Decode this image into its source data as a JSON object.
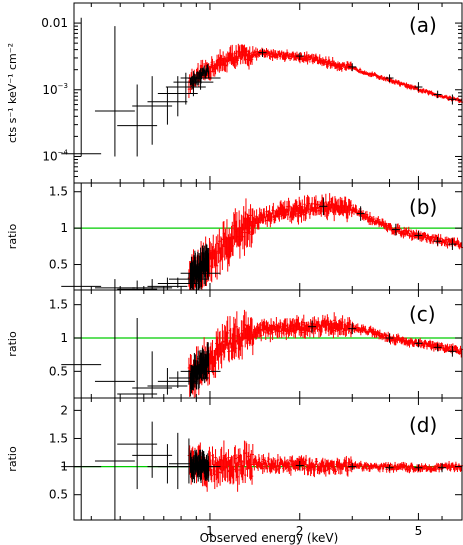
{
  "chart_data": {
    "type": "scatter",
    "x_axis": {
      "label": "Observed energy (keV)",
      "scale": "log",
      "range": [
        0.35,
        7.0
      ],
      "major_ticks": [
        {
          "value": 1,
          "label": "1"
        },
        {
          "value": 2,
          "label": "2"
        },
        {
          "value": 5,
          "label": "5"
        }
      ]
    },
    "series_colors": {
      "black_instrument": "#000000",
      "red_instrument": "#ff0000",
      "reference_line": "#00cc00"
    },
    "panels": [
      {
        "id": "a",
        "label": "(a)",
        "ylabel": "cts s⁻¹ keV⁻¹ cm⁻²",
        "yscale": "log",
        "ylim": [
          4e-05,
          0.02
        ],
        "yticks": [
          {
            "value": 0.01,
            "label": "0.01"
          },
          {
            "value": 0.001,
            "label": "10",
            "exp": "−3"
          },
          {
            "value": 0.0001,
            "label": "10",
            "exp": "−4"
          }
        ],
        "reference_line": null,
        "curve": [
          [
            0.85,
            0.0012
          ],
          [
            1.0,
            0.0021
          ],
          [
            1.2,
            0.0031
          ],
          [
            1.5,
            0.0035
          ],
          [
            1.8,
            0.0033
          ],
          [
            2.2,
            0.0029
          ],
          [
            3.0,
            0.0021
          ],
          [
            4.0,
            0.0014
          ],
          [
            5.0,
            0.001
          ],
          [
            6.0,
            0.0008
          ],
          [
            7.0,
            0.00068
          ]
        ],
        "black_points": [
          [
            0.37,
            0.00011,
            0.0001,
            0.012
          ],
          [
            0.48,
            0.00048,
            0.0001,
            0.009
          ],
          [
            0.57,
            0.00029,
            0.0001,
            0.0012
          ],
          [
            0.64,
            0.00057,
            0.00015,
            0.0016
          ],
          [
            0.72,
            0.00066,
            0.0003,
            0.0011
          ],
          [
            0.78,
            0.00088,
            0.0004,
            0.0016
          ],
          [
            0.83,
            0.0011,
            0.0006,
            0.0018
          ],
          [
            0.88,
            0.0013,
            0.0008,
            0.0019
          ],
          [
            0.93,
            0.0015,
            0.001,
            0.0021
          ],
          [
            1.5,
            0.0036,
            0.0031,
            0.0041
          ],
          [
            2.0,
            0.0032,
            0.0028,
            0.0036
          ],
          [
            3.0,
            0.0022,
            0.0019,
            0.0025
          ],
          [
            4.0,
            0.0015,
            0.0013,
            0.0017
          ],
          [
            5.0,
            0.0011,
            0.00095,
            0.0013
          ],
          [
            5.8,
            0.00085,
            0.00075,
            0.00097
          ],
          [
            6.5,
            0.00072,
            0.0006,
            0.00085
          ]
        ]
      },
      {
        "id": "b",
        "label": "(b)",
        "ylabel": "ratio",
        "yscale": "linear",
        "ylim": [
          0.15,
          1.62
        ],
        "yticks": [
          {
            "value": 0.5,
            "label": "0.5"
          },
          {
            "value": 1,
            "label": "1"
          },
          {
            "value": 1.5,
            "label": "1.5"
          }
        ],
        "reference_line": 1,
        "curve": [
          [
            0.85,
            0.32
          ],
          [
            1.0,
            0.55
          ],
          [
            1.2,
            0.9
          ],
          [
            1.4,
            1.1
          ],
          [
            1.7,
            1.2
          ],
          [
            2.0,
            1.25
          ],
          [
            2.5,
            1.3
          ],
          [
            3.0,
            1.25
          ],
          [
            3.5,
            1.12
          ],
          [
            4.0,
            1.0
          ],
          [
            5.0,
            0.9
          ],
          [
            6.0,
            0.82
          ],
          [
            7.0,
            0.77
          ]
        ],
        "black_points": [
          [
            0.37,
            0.2,
            0.15,
            1.62
          ],
          [
            0.48,
            0.18,
            0.15,
            0.3
          ],
          [
            0.57,
            0.16,
            0.15,
            0.28
          ],
          [
            0.64,
            0.18,
            0.15,
            0.3
          ],
          [
            0.72,
            0.2,
            0.15,
            0.32
          ],
          [
            0.78,
            0.24,
            0.18,
            0.32
          ],
          [
            0.85,
            0.3,
            0.24,
            0.38
          ],
          [
            0.93,
            0.38,
            0.32,
            0.46
          ],
          [
            2.4,
            1.3,
            1.18,
            1.42
          ],
          [
            3.2,
            1.2,
            1.1,
            1.3
          ],
          [
            4.2,
            0.98,
            0.9,
            1.06
          ],
          [
            5.0,
            0.9,
            0.84,
            0.96
          ],
          [
            5.8,
            0.82,
            0.76,
            0.88
          ],
          [
            6.5,
            0.78,
            0.7,
            0.86
          ]
        ]
      },
      {
        "id": "c",
        "label": "(c)",
        "ylabel": "ratio",
        "yscale": "linear",
        "ylim": [
          0.1,
          1.72
        ],
        "yticks": [
          {
            "value": 0.5,
            "label": "0.5"
          },
          {
            "value": 1,
            "label": "1"
          },
          {
            "value": 1.5,
            "label": "1.5"
          }
        ],
        "reference_line": 1,
        "curve": [
          [
            0.85,
            0.4
          ],
          [
            1.0,
            0.68
          ],
          [
            1.2,
            1.0
          ],
          [
            1.5,
            1.12
          ],
          [
            2.0,
            1.15
          ],
          [
            2.5,
            1.2
          ],
          [
            3.0,
            1.15
          ],
          [
            3.5,
            1.1
          ],
          [
            4.0,
            1.0
          ],
          [
            5.0,
            0.92
          ],
          [
            6.0,
            0.86
          ],
          [
            7.0,
            0.8
          ]
        ],
        "black_points": [
          [
            0.37,
            0.6,
            0.1,
            1.72
          ],
          [
            0.48,
            0.35,
            0.1,
            1.72
          ],
          [
            0.57,
            0.16,
            0.1,
            1.3
          ],
          [
            0.64,
            0.25,
            0.1,
            0.8
          ],
          [
            0.72,
            0.28,
            0.15,
            0.55
          ],
          [
            0.78,
            0.35,
            0.25,
            0.5
          ],
          [
            0.85,
            0.4,
            0.3,
            0.52
          ],
          [
            0.93,
            0.5,
            0.4,
            0.6
          ],
          [
            2.2,
            1.17,
            1.08,
            1.26
          ],
          [
            3.0,
            1.14,
            1.06,
            1.22
          ],
          [
            4.0,
            1.0,
            0.93,
            1.07
          ],
          [
            5.0,
            0.92,
            0.86,
            0.98
          ],
          [
            5.8,
            0.86,
            0.8,
            0.92
          ],
          [
            6.5,
            0.8,
            0.72,
            0.88
          ]
        ]
      },
      {
        "id": "d",
        "label": "(d)",
        "ylabel": "ratio",
        "yscale": "linear",
        "ylim": [
          0.05,
          2.22
        ],
        "yticks": [
          {
            "value": 0.5,
            "label": "0.5"
          },
          {
            "value": 1,
            "label": "1"
          },
          {
            "value": 1.5,
            "label": "1.5"
          },
          {
            "value": 2,
            "label": "2"
          }
        ],
        "reference_line": 1,
        "curve": [
          [
            0.85,
            1.0
          ],
          [
            1.0,
            1.0
          ],
          [
            1.5,
            1.05
          ],
          [
            2.0,
            1.02
          ],
          [
            3.0,
            1.0
          ],
          [
            5.0,
            0.98
          ],
          [
            7.0,
            1.0
          ]
        ],
        "black_points": [
          [
            0.37,
            1.0,
            0.05,
            2.22
          ],
          [
            0.48,
            1.1,
            0.05,
            2.22
          ],
          [
            0.57,
            1.4,
            0.6,
            2.22
          ],
          [
            0.64,
            1.2,
            0.8,
            1.8
          ],
          [
            0.72,
            1.0,
            0.7,
            1.4
          ],
          [
            0.78,
            1.0,
            0.6,
            1.6
          ],
          [
            0.85,
            1.05,
            0.7,
            1.5
          ],
          [
            0.93,
            1.0,
            0.75,
            1.3
          ],
          [
            2.0,
            1.02,
            0.94,
            1.1
          ],
          [
            3.0,
            1.0,
            0.94,
            1.06
          ],
          [
            4.0,
            0.98,
            0.93,
            1.03
          ],
          [
            5.0,
            0.98,
            0.92,
            1.04
          ],
          [
            6.0,
            0.98,
            0.9,
            1.06
          ]
        ]
      }
    ]
  }
}
